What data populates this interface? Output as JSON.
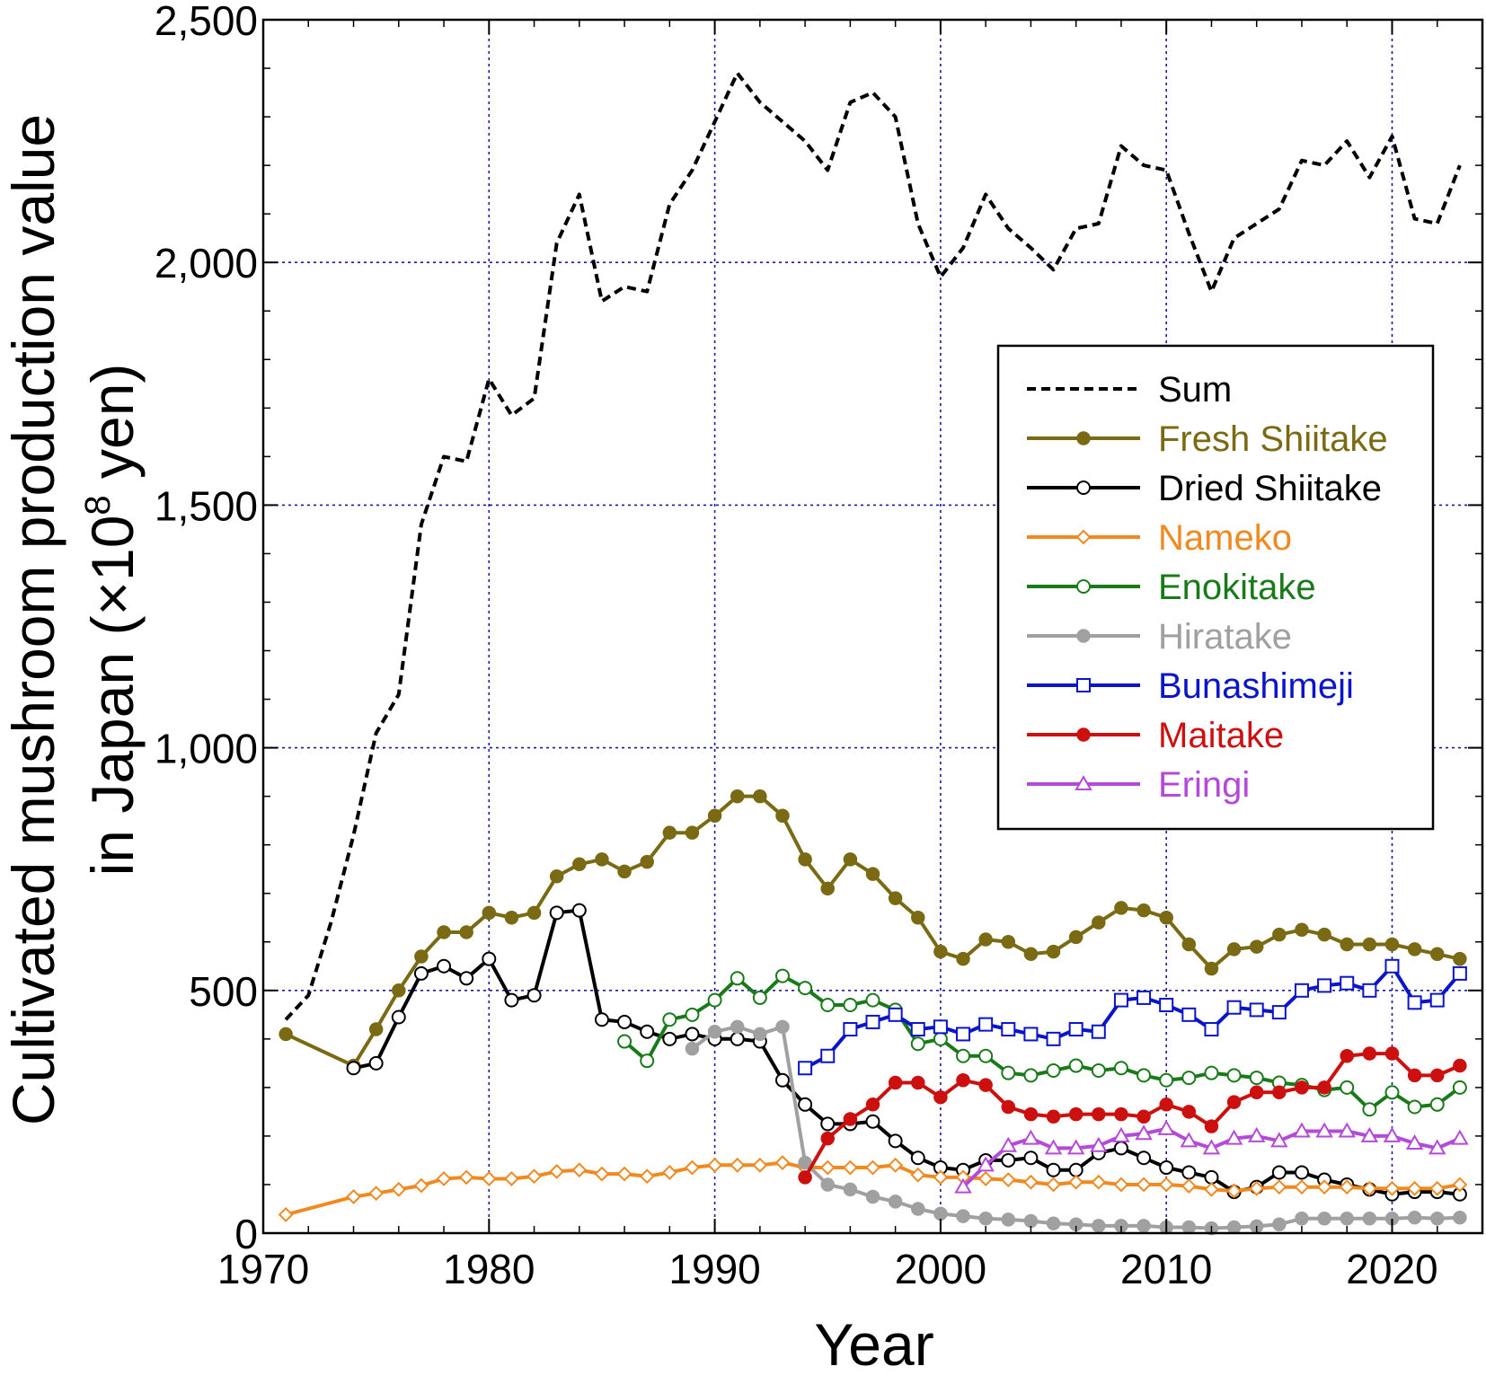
{
  "chart_data": {
    "type": "line",
    "xlabel": "Year",
    "ylabel_line1": "Cultivated mushroom production value",
    "ylabel_line2_prefix": "in Japan (×10",
    "ylabel_line2_sup": "8",
    "ylabel_line2_suffix": " yen)",
    "xlim": [
      1970,
      2024
    ],
    "ylim": [
      0,
      2500
    ],
    "xticks": [
      1970,
      1980,
      1990,
      2000,
      2010,
      2020
    ],
    "xtick_labels": [
      "1970",
      "1980",
      "1990",
      "2000",
      "2010",
      "2020"
    ],
    "yticks": [
      0,
      500,
      1000,
      1500,
      2000,
      2500
    ],
    "ytick_labels": [
      "0",
      "500",
      "1,000",
      "1,500",
      "2,000",
      "2,500"
    ],
    "grid": true,
    "legend_position": "right",
    "series": [
      {
        "name": "Sum",
        "color": "#000000",
        "dash": "dashed",
        "marker": "none",
        "x": [
          1971,
          1972,
          1973,
          1974,
          1975,
          1976,
          1977,
          1978,
          1979,
          1980,
          1981,
          1982,
          1983,
          1984,
          1985,
          1986,
          1987,
          1988,
          1989,
          1990,
          1991,
          1992,
          1993,
          1994,
          1995,
          1996,
          1997,
          1998,
          1999,
          2000,
          2001,
          2002,
          2003,
          2004,
          2005,
          2006,
          2007,
          2008,
          2009,
          2010,
          2011,
          2012,
          2013,
          2014,
          2015,
          2016,
          2017,
          2018,
          2019,
          2020,
          2021,
          2022,
          2023
        ],
        "y": [
          440,
          490,
          640,
          820,
          1030,
          1110,
          1460,
          1600,
          1590,
          1760,
          1685,
          1720,
          2040,
          2140,
          1920,
          1950,
          1940,
          2120,
          2190,
          2290,
          2390,
          2330,
          2290,
          2250,
          2190,
          2330,
          2350,
          2300,
          2080,
          1970,
          2030,
          2140,
          2070,
          2030,
          1985,
          2070,
          2080,
          2240,
          2200,
          2190,
          2060,
          1940,
          2050,
          2080,
          2110,
          2210,
          2200,
          2250,
          2175,
          2260,
          2090,
          2080,
          2200
        ]
      },
      {
        "name": "Fresh Shiitake",
        "color": "#7a6a14",
        "marker": "filled-circle",
        "x": [
          1971,
          1974,
          1975,
          1976,
          1977,
          1978,
          1979,
          1980,
          1981,
          1982,
          1983,
          1984,
          1985,
          1986,
          1987,
          1988,
          1989,
          1990,
          1991,
          1992,
          1993,
          1994,
          1995,
          1996,
          1997,
          1998,
          1999,
          2000,
          2001,
          2002,
          2003,
          2004,
          2005,
          2006,
          2007,
          2008,
          2009,
          2010,
          2011,
          2012,
          2013,
          2014,
          2015,
          2016,
          2017,
          2018,
          2019,
          2020,
          2021,
          2022,
          2023
        ],
        "y": [
          410,
          345,
          420,
          500,
          570,
          620,
          620,
          660,
          650,
          660,
          735,
          760,
          770,
          745,
          765,
          825,
          825,
          860,
          900,
          900,
          860,
          770,
          710,
          770,
          740,
          690,
          650,
          580,
          565,
          605,
          600,
          575,
          580,
          610,
          640,
          670,
          665,
          650,
          595,
          545,
          585,
          590,
          615,
          625,
          615,
          595,
          595,
          595,
          585,
          575,
          565
        ]
      },
      {
        "name": "Dried Shiitake",
        "color": "#000000",
        "marker": "open-circle",
        "x": [
          1974,
          1975,
          1976,
          1977,
          1978,
          1979,
          1980,
          1981,
          1982,
          1983,
          1984,
          1985,
          1986,
          1987,
          1988,
          1989,
          1990,
          1991,
          1992,
          1993,
          1994,
          1995,
          1996,
          1997,
          1998,
          1999,
          2000,
          2001,
          2002,
          2003,
          2004,
          2005,
          2006,
          2007,
          2008,
          2009,
          2010,
          2011,
          2012,
          2013,
          2014,
          2015,
          2016,
          2017,
          2018,
          2019,
          2020,
          2021,
          2022,
          2023
        ],
        "y": [
          340,
          350,
          445,
          535,
          550,
          525,
          565,
          480,
          490,
          660,
          665,
          440,
          435,
          415,
          400,
          410,
          400,
          400,
          395,
          315,
          265,
          225,
          225,
          230,
          190,
          155,
          135,
          130,
          150,
          150,
          155,
          130,
          130,
          165,
          175,
          155,
          135,
          125,
          115,
          85,
          95,
          125,
          125,
          110,
          100,
          90,
          80,
          85,
          85,
          80
        ]
      },
      {
        "name": "Nameko",
        "color": "#f08a20",
        "marker": "open-diamond",
        "x": [
          1971,
          1974,
          1975,
          1976,
          1977,
          1978,
          1979,
          1980,
          1981,
          1982,
          1983,
          1984,
          1985,
          1986,
          1987,
          1988,
          1989,
          1990,
          1991,
          1992,
          1993,
          1994,
          1995,
          1996,
          1997,
          1998,
          1999,
          2000,
          2001,
          2002,
          2003,
          2004,
          2005,
          2006,
          2007,
          2008,
          2009,
          2010,
          2011,
          2012,
          2013,
          2014,
          2015,
          2016,
          2017,
          2018,
          2019,
          2020,
          2021,
          2022,
          2023
        ],
        "y": [
          38,
          75,
          82,
          90,
          98,
          112,
          115,
          112,
          112,
          117,
          127,
          130,
          122,
          122,
          117,
          125,
          135,
          140,
          140,
          140,
          145,
          135,
          135,
          135,
          135,
          140,
          120,
          115,
          115,
          112,
          110,
          105,
          100,
          105,
          105,
          100,
          100,
          100,
          97,
          90,
          87,
          92,
          95,
          95,
          95,
          95,
          92,
          92,
          92,
          92,
          100
        ]
      },
      {
        "name": "Enokitake",
        "color": "#1a7a1a",
        "marker": "open-circle",
        "x": [
          1986,
          1987,
          1988,
          1989,
          1990,
          1991,
          1992,
          1993,
          1994,
          1995,
          1996,
          1997,
          1998,
          1999,
          2000,
          2001,
          2002,
          2003,
          2004,
          2005,
          2006,
          2007,
          2008,
          2009,
          2010,
          2011,
          2012,
          2013,
          2014,
          2015,
          2016,
          2017,
          2018,
          2019,
          2020,
          2021,
          2022,
          2023
        ],
        "y": [
          395,
          355,
          440,
          450,
          480,
          525,
          485,
          530,
          505,
          470,
          470,
          480,
          460,
          390,
          400,
          365,
          365,
          330,
          325,
          335,
          345,
          335,
          340,
          325,
          315,
          320,
          330,
          325,
          320,
          310,
          305,
          295,
          300,
          255,
          290,
          260,
          265,
          300
        ]
      },
      {
        "name": "Hiratake",
        "color": "#a0a0a0",
        "marker": "filled-circle",
        "x": [
          1989,
          1990,
          1991,
          1992,
          1993,
          1994,
          1995,
          1996,
          1997,
          1998,
          1999,
          2000,
          2001,
          2002,
          2003,
          2004,
          2005,
          2006,
          2007,
          2008,
          2009,
          2010,
          2011,
          2012,
          2013,
          2014,
          2015,
          2016,
          2017,
          2018,
          2019,
          2020,
          2021,
          2022,
          2023
        ],
        "y": [
          380,
          415,
          425,
          410,
          425,
          145,
          100,
          90,
          75,
          65,
          50,
          40,
          35,
          30,
          28,
          25,
          20,
          18,
          15,
          15,
          15,
          12,
          12,
          10,
          12,
          14,
          18,
          30,
          30,
          30,
          30,
          30,
          32,
          30,
          32
        ]
      },
      {
        "name": "Bunashimeji",
        "color": "#0a14c8",
        "marker": "open-square",
        "x": [
          1994,
          1995,
          1996,
          1997,
          1998,
          1999,
          2000,
          2001,
          2002,
          2003,
          2004,
          2005,
          2006,
          2007,
          2008,
          2009,
          2010,
          2011,
          2012,
          2013,
          2014,
          2015,
          2016,
          2017,
          2018,
          2019,
          2020,
          2021,
          2022,
          2023
        ],
        "y": [
          340,
          365,
          420,
          435,
          450,
          420,
          425,
          410,
          430,
          420,
          410,
          400,
          420,
          415,
          480,
          485,
          470,
          450,
          420,
          465,
          460,
          455,
          500,
          510,
          515,
          500,
          550,
          475,
          480,
          535
        ]
      },
      {
        "name": "Maitake",
        "color": "#cc1010",
        "marker": "filled-circle",
        "x": [
          1994,
          1995,
          1996,
          1997,
          1998,
          1999,
          2000,
          2001,
          2002,
          2003,
          2004,
          2005,
          2006,
          2007,
          2008,
          2009,
          2010,
          2011,
          2012,
          2013,
          2014,
          2015,
          2016,
          2017,
          2018,
          2019,
          2020,
          2021,
          2022,
          2023
        ],
        "y": [
          115,
          195,
          235,
          265,
          310,
          310,
          280,
          315,
          305,
          260,
          245,
          240,
          245,
          245,
          245,
          240,
          265,
          250,
          220,
          270,
          290,
          290,
          300,
          300,
          365,
          370,
          370,
          325,
          325,
          345
        ]
      },
      {
        "name": "Eringi",
        "color": "#b44ad8",
        "marker": "open-triangle",
        "x": [
          2001,
          2002,
          2003,
          2004,
          2005,
          2006,
          2007,
          2008,
          2009,
          2010,
          2011,
          2012,
          2013,
          2014,
          2015,
          2016,
          2017,
          2018,
          2019,
          2020,
          2021,
          2022,
          2023
        ],
        "y": [
          95,
          140,
          180,
          195,
          175,
          175,
          180,
          200,
          205,
          215,
          190,
          175,
          195,
          200,
          190,
          210,
          210,
          210,
          200,
          200,
          185,
          175,
          195
        ]
      }
    ]
  }
}
